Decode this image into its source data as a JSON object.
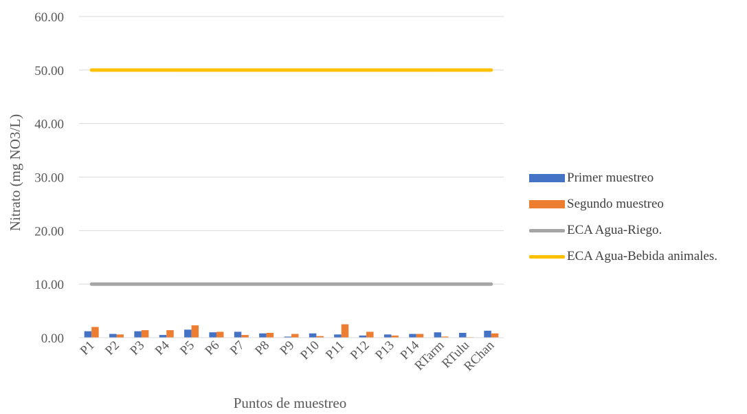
{
  "chart_data": {
    "type": "bar",
    "xlabel": "Puntos de muestreo",
    "ylabel": "Nitrato (mg NO3/L)",
    "ylim": [
      0,
      60
    ],
    "yticks": [
      "0.00",
      "10.00",
      "20.00",
      "30.00",
      "40.00",
      "50.00",
      "60.00"
    ],
    "grid": true,
    "legend_position": "right",
    "categories": [
      "P1",
      "P2",
      "P3",
      "P4",
      "P5",
      "P6",
      "P7",
      "P8",
      "P9",
      "P10",
      "P11",
      "P12",
      "P13",
      "P14",
      "RTarm",
      "RTulu",
      "RChan"
    ],
    "series": [
      {
        "name": "Primer muestreo",
        "kind": "bar",
        "color": "#4472C4",
        "values": [
          1.2,
          0.7,
          1.2,
          0.5,
          1.5,
          1.0,
          1.1,
          0.8,
          0.2,
          0.8,
          0.6,
          0.4,
          0.6,
          0.7,
          1.0,
          0.9,
          1.3
        ]
      },
      {
        "name": "Segundo muestreo",
        "kind": "bar",
        "color": "#ED7D31",
        "values": [
          2.0,
          0.6,
          1.4,
          1.4,
          2.3,
          1.1,
          0.5,
          0.9,
          0.7,
          0.3,
          2.5,
          1.1,
          0.4,
          0.7,
          0.2,
          0.1,
          0.8
        ]
      },
      {
        "name": "ECA Agua-Riego.",
        "kind": "line",
        "color": "#A5A5A5",
        "values": [
          10,
          10,
          10,
          10,
          10,
          10,
          10,
          10,
          10,
          10,
          10,
          10,
          10,
          10,
          10,
          10,
          10
        ]
      },
      {
        "name": "ECA Agua-Bebida animales.",
        "kind": "line",
        "color": "#FFC000",
        "values": [
          50,
          50,
          50,
          50,
          50,
          50,
          50,
          50,
          50,
          50,
          50,
          50,
          50,
          50,
          50,
          50,
          50
        ]
      }
    ]
  }
}
